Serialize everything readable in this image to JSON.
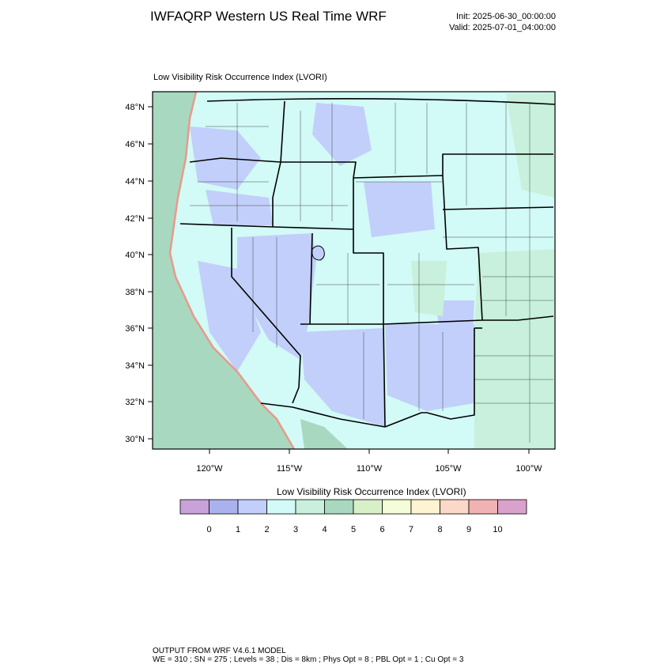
{
  "header": {
    "title": "IWFAQRP Western US Real Time WRF",
    "init": "Init: 2025-06-30_00:00:00",
    "valid": "Valid: 2025-07-01_04:00:00"
  },
  "map": {
    "label": "Low Visibility Risk Occurrence Index   (LVORI)",
    "lat_labels": [
      "48°N",
      "46°N",
      "44°N",
      "42°N",
      "40°N",
      "38°N",
      "36°N",
      "34°N",
      "32°N",
      "30°N"
    ],
    "lon_labels": [
      "120°W",
      "115°W",
      "110°W",
      "105°W",
      "100°W"
    ]
  },
  "colorbar": {
    "title": "Low Visibility Risk Occurrence Index  (LVORI)",
    "labels": [
      "0",
      "1",
      "2",
      "3",
      "4",
      "5",
      "6",
      "7",
      "8",
      "9",
      "10"
    ],
    "colors": [
      "#c8a2d8",
      "#aab2ee",
      "#c2cffa",
      "#d2faf6",
      "#c8f0dc",
      "#a8d8c0",
      "#d8f0c8",
      "#f4fcd8",
      "#fff4d2",
      "#fcd8c8",
      "#f0b2b2",
      "#d8a2cc"
    ]
  },
  "footer": {
    "line1": "OUTPUT FROM WRF V4.6.1 MODEL",
    "line2": "WE = 310 ; SN = 275 ; Levels = 38 ; Dis = 8km ; Phys Opt = 8 ; PBL Opt = 1 ; Cu Opt = 3"
  }
}
